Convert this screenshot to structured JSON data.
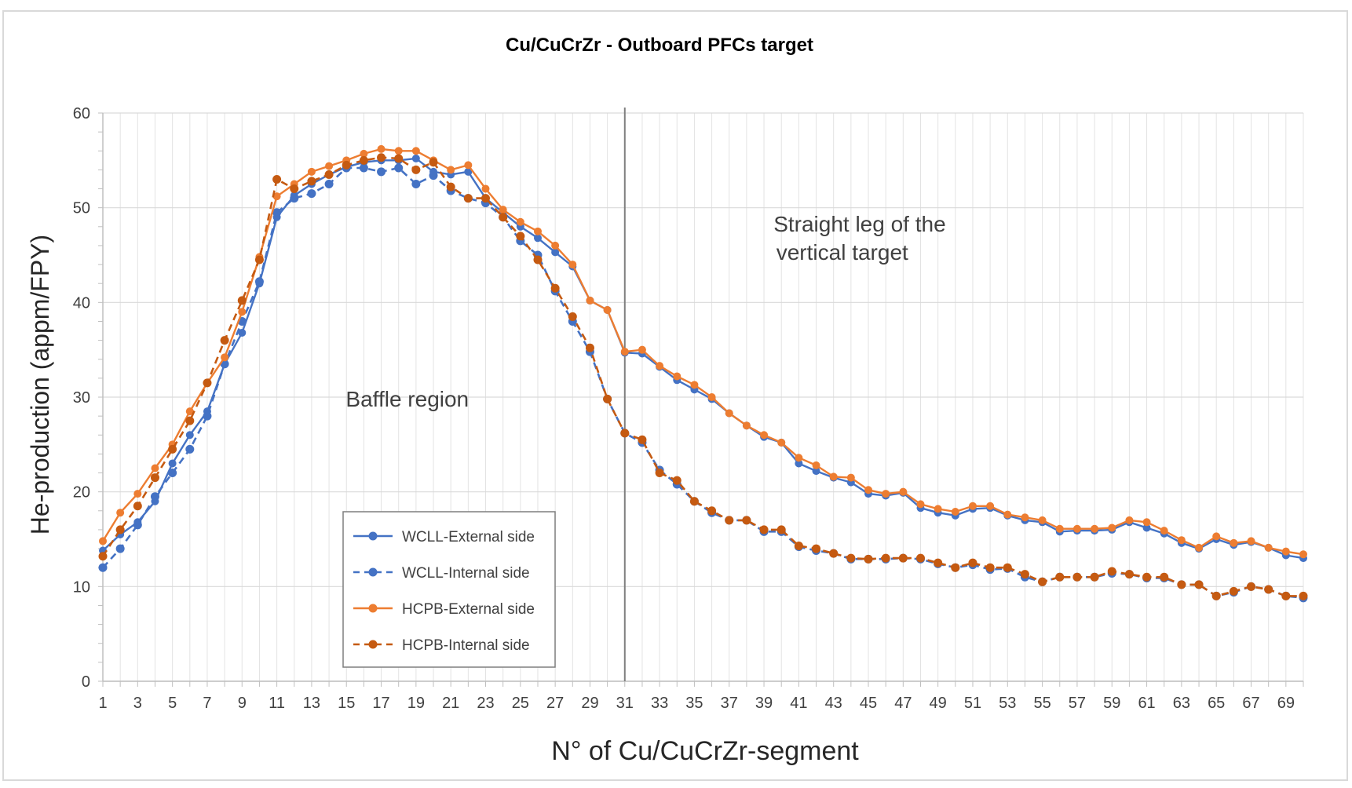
{
  "chart_data": {
    "type": "line",
    "title": "Cu/CuCrZr - Outboard PFCs target",
    "xlabel": "N° of Cu/CuCrZr-segment",
    "ylabel": "He-production (appm/FPY)",
    "x_range": [
      1,
      70
    ],
    "ylim": [
      0,
      60
    ],
    "y_ticks": [
      0,
      10,
      20,
      30,
      40,
      50,
      60
    ],
    "x_tick_labels": [
      "1",
      "3",
      "5",
      "7",
      "9",
      "11",
      "13",
      "15",
      "17",
      "19",
      "21",
      "23",
      "25",
      "27",
      "29",
      "31",
      "33",
      "35",
      "37",
      "39",
      "41",
      "43",
      "45",
      "47",
      "49",
      "51",
      "53",
      "55",
      "57",
      "59",
      "61",
      "63",
      "65",
      "67",
      "69"
    ],
    "grid": true,
    "vertical_marker_x": 31,
    "annotations": [
      {
        "id": "baffle",
        "text": "Baffle region",
        "x": 18.5,
        "y": 29
      },
      {
        "id": "straight-1",
        "text": "Straight leg of the",
        "x": 44.5,
        "y": 47.5
      },
      {
        "id": "straight-2",
        "text": "vertical target",
        "x": 43.5,
        "y": 44.5
      }
    ],
    "legend_position": "bottom-left",
    "series": [
      {
        "name": "WCLL-External side",
        "color": "#4472c4",
        "dashed": false,
        "values": [
          13.8,
          15.5,
          16.8,
          19.0,
          23.0,
          26.0,
          28.5,
          33.5,
          36.8,
          42.0,
          49.0,
          51.3,
          52.5,
          53.5,
          54.3,
          54.8,
          55.0,
          55.0,
          55.2,
          53.8,
          53.5,
          53.8,
          51.0,
          49.5,
          48.0,
          46.8,
          45.3,
          43.8,
          40.2,
          39.2,
          34.7,
          34.6,
          33.2,
          31.8,
          30.8,
          29.8,
          28.3,
          27.0,
          25.8,
          25.2,
          23.0,
          22.2,
          21.5,
          21.0,
          19.8,
          19.6,
          19.9,
          18.3,
          17.8,
          17.5,
          18.2,
          18.3,
          17.5,
          17.0,
          16.8,
          15.8,
          15.9,
          15.9,
          16.0,
          16.8,
          16.2,
          15.6,
          14.6,
          14.0,
          15.0,
          14.4,
          14.7,
          14.1,
          13.3,
          13.0
        ]
      },
      {
        "name": "WCLL-Internal side",
        "color": "#4472c4",
        "dashed": true,
        "values": [
          12.0,
          14.0,
          16.5,
          19.5,
          22.0,
          24.5,
          28.0,
          33.5,
          38.0,
          42.2,
          49.5,
          51.0,
          51.5,
          52.5,
          54.2,
          54.2,
          53.8,
          54.2,
          52.5,
          53.4,
          51.8,
          51.0,
          50.5,
          49.0,
          46.5,
          45.0,
          41.2,
          38.0,
          34.8,
          29.8,
          26.2,
          25.2,
          22.3,
          20.8,
          19.0,
          17.8,
          17.0,
          17.0,
          15.8,
          15.8,
          14.2,
          13.8,
          13.5,
          12.9,
          12.9,
          12.9,
          13.0,
          12.9,
          12.4,
          12.0,
          12.3,
          11.8,
          11.9,
          11.0,
          10.5,
          11.0,
          11.0,
          11.0,
          11.4,
          11.3,
          10.9,
          10.9,
          10.2,
          10.2,
          9.0,
          9.4,
          10.0,
          9.7,
          9.0,
          8.8
        ]
      },
      {
        "name": "HCPB-External side",
        "color": "#ed7d31",
        "dashed": false,
        "values": [
          14.8,
          17.8,
          19.8,
          22.5,
          25.0,
          28.5,
          31.5,
          34.2,
          39.0,
          44.8,
          51.2,
          52.5,
          53.8,
          54.4,
          55.0,
          55.7,
          56.2,
          56.0,
          56.0,
          55.0,
          54.0,
          54.5,
          52.0,
          49.8,
          48.5,
          47.5,
          46.0,
          44.0,
          40.2,
          39.2,
          34.8,
          35.0,
          33.3,
          32.2,
          31.3,
          30.0,
          28.3,
          27.0,
          26.0,
          25.2,
          23.6,
          22.8,
          21.6,
          21.5,
          20.2,
          19.8,
          20.0,
          18.7,
          18.2,
          17.9,
          18.5,
          18.5,
          17.6,
          17.3,
          17.0,
          16.1,
          16.1,
          16.1,
          16.2,
          17.0,
          16.8,
          15.9,
          14.9,
          14.1,
          15.3,
          14.6,
          14.8,
          14.1,
          13.7,
          13.4
        ]
      },
      {
        "name": "HCPB-Internal side",
        "color": "#c55a11",
        "dashed": true,
        "values": [
          13.2,
          16.0,
          18.5,
          21.5,
          24.5,
          27.5,
          31.5,
          36.0,
          40.2,
          44.5,
          53.0,
          52.0,
          52.8,
          53.5,
          54.5,
          55.0,
          55.3,
          55.2,
          54.0,
          54.8,
          52.2,
          51.0,
          51.0,
          49.0,
          47.0,
          44.5,
          41.5,
          38.5,
          35.2,
          29.8,
          26.2,
          25.5,
          22.0,
          21.2,
          19.0,
          18.0,
          17.0,
          17.0,
          16.0,
          16.0,
          14.3,
          14.0,
          13.5,
          13.0,
          12.9,
          13.0,
          13.0,
          13.0,
          12.5,
          12.0,
          12.5,
          12.0,
          12.0,
          11.3,
          10.5,
          11.0,
          11.0,
          11.0,
          11.6,
          11.3,
          11.0,
          11.0,
          10.2,
          10.2,
          9.0,
          9.5,
          10.0,
          9.7,
          9.0,
          9.0
        ]
      }
    ]
  }
}
